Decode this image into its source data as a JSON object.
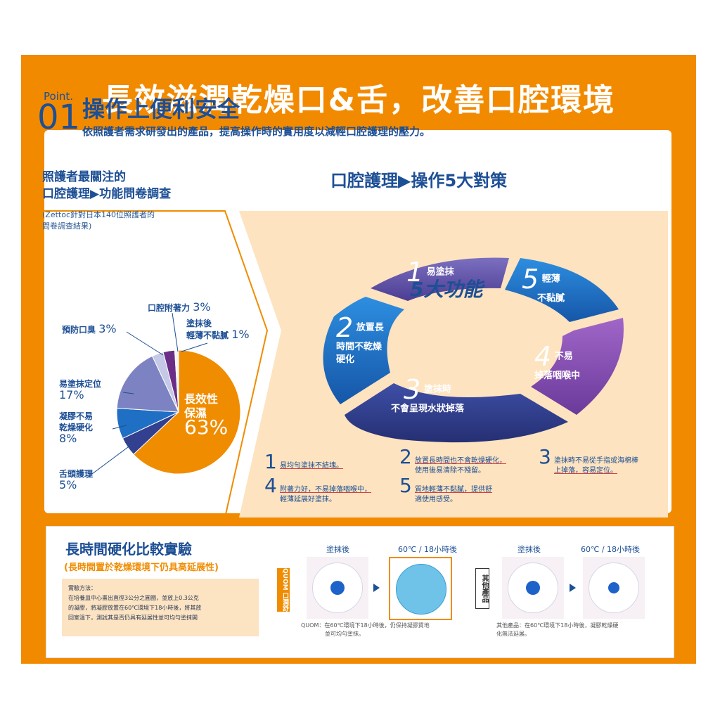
{
  "headline": "長效滋潤乾燥口&舌，改善口腔環境",
  "point": {
    "label": "Point.",
    "number": "01",
    "title": "操作上便利安全",
    "subtitle": "依照護者需求研發出的產品，提高操作時的實用度以減輕口腔護理的壓力。"
  },
  "survey": {
    "title_line1": "照護者最關注的",
    "title_line2": "口腔護理▶功能問卷調查",
    "note_line1": "(Zettoc針對日本140位照護者的",
    "note_line2": "問卷調查結果)",
    "labels": {
      "adhesion": "口腔附著力",
      "adhesion_pct": "3%",
      "thin_line1": "塗抹後",
      "thin_line2": "輕薄不黏膩",
      "thin_pct": "1%",
      "odor": "預防口臭",
      "odor_pct": "3%",
      "easy": "易塗抹定位",
      "easy_pct": "17%",
      "hard_line1": "凝膠不易",
      "hard_line2": "乾燥硬化",
      "hard_pct": "8%",
      "tongue": "舌頭護理",
      "tongue_pct": "5%",
      "moist_line1": "長效性",
      "moist_line2": "保濕",
      "moist_pct": "63%"
    }
  },
  "chart_data": {
    "type": "pie",
    "categories": [
      "長效性保濕",
      "舌頭護理",
      "凝膠不易乾燥硬化",
      "易塗抹定位",
      "預防口臭",
      "口腔附著力",
      "塗抹後輕薄不黏膩"
    ],
    "values": [
      63,
      5,
      8,
      17,
      3,
      3,
      1
    ],
    "colors": [
      "#f08c00",
      "#33408f",
      "#1f6fc4",
      "#7d82c2",
      "#c5c8e6",
      "#6a2e87",
      "#f5f5f5"
    ]
  },
  "strategies": {
    "title": "口腔護理▶操作5大對策",
    "center": "5大功能",
    "seg1": {
      "n": "1",
      "text": "易塗抹"
    },
    "seg2": {
      "n": "2",
      "text_line1": "放置長",
      "text_line2": "時間不乾燥",
      "text_line3": "硬化"
    },
    "seg3": {
      "n": "3",
      "text_line1": "塗抹時",
      "text_line2": "不會呈現水狀掉落"
    },
    "seg4": {
      "n": "4",
      "text_line1": "不易",
      "text_line2": "掉落咽喉中"
    },
    "seg5": {
      "n": "5",
      "text_line1": "輕薄",
      "text_line2": "不黏膩"
    },
    "notes": {
      "n1": "1",
      "t1": "易均勻塗抹不結塊。",
      "n2": "2",
      "t2a": "放置長時間也不會乾燥硬化，",
      "t2b": "使用後易清除不殘留。",
      "n3": "3",
      "t3a": "塗抹時不易從手指或海棉棒",
      "t3b": "上掉落，容易定位。",
      "n4": "4",
      "t4a": "附著力好，不易掉落咽喉中，",
      "t4b": "輕薄延展好塗抹。",
      "n5": "5",
      "t5a": "質地輕薄不黏膩，提供舒",
      "t5b": "適使用感受。"
    }
  },
  "experiment": {
    "title": "長時間硬化比較實驗",
    "subtitle": "(長時間置於乾燥環境下仍具高延展性)",
    "method_title": "實驗方法：",
    "method_line1": "在培養皿中心畫出直徑3公分之圓圈，並放上0.3公克",
    "method_line2": "的凝膠，將凝膠放置在60℃環境下18小時後，將其放",
    "method_line3": "回室溫下，測試其是否仍具有延展性並可均勻塗抹開",
    "quom_tab": "QUOM 口潤舒",
    "other_tab": "其他產品",
    "head_after": "塗抹後",
    "head_60": "60℃ / 18小時後",
    "head_after2": "塗抹後",
    "head_60b": "60℃ / 18小時後",
    "quom_caption_line1": "QUOM：在60℃環境下18小時後，仍保持凝膠質地",
    "quom_caption_line2": "並可均勻塗抹。",
    "other_caption_line1": "其他產品：在60℃環境下18小時後，凝膠乾燥硬",
    "other_caption_line2": "化無法延展。"
  }
}
